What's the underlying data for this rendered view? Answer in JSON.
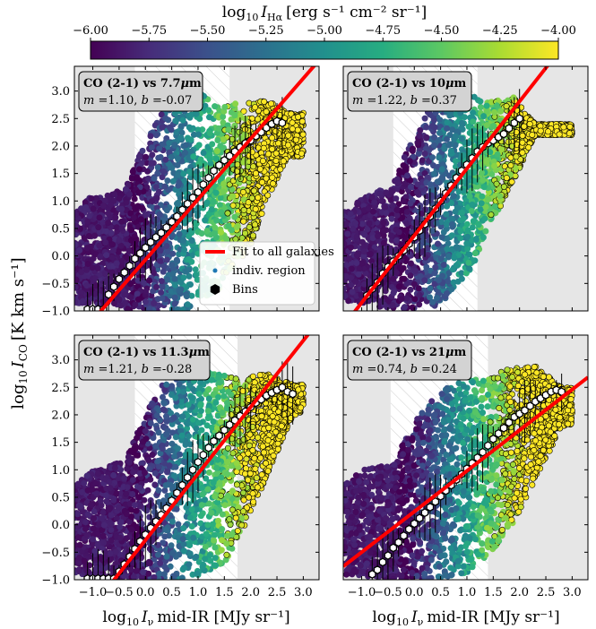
{
  "colorbar": {
    "label": "log₁₀ Iₕα [erg s⁻¹ cm⁻² sr⁻¹]",
    "label_parts": {
      "prefix": "log",
      "sub": "10",
      "var": "I",
      "var_sub": "Hα",
      "units": "[erg s⁻¹ cm⁻² sr⁻¹]"
    },
    "range": [
      -6.0,
      -4.0
    ],
    "ticks": [
      "−6.00",
      "−5.75",
      "−5.50",
      "−5.25",
      "−5.00",
      "−4.75",
      "−4.50",
      "−4.25",
      "−4.00"
    ],
    "tick_values": [
      -6.0,
      -5.75,
      -5.5,
      -5.25,
      -5.0,
      -4.75,
      -4.5,
      -4.25,
      -4.0
    ],
    "colormap": [
      "#440154",
      "#472c7a",
      "#3b518b",
      "#2c718e",
      "#21908d",
      "#27ad81",
      "#5cc863",
      "#aadc32",
      "#fde725"
    ]
  },
  "axes": {
    "ylabel": {
      "prefix": "log",
      "sub": "10",
      "var": "I",
      "var_sub": "CO",
      "units": "[K km s⁻¹]"
    },
    "xlabel": {
      "prefix": "log",
      "sub": "10",
      "var": "I",
      "var_sub": "ν",
      "units": "mid-IR [MJy sr⁻¹]"
    },
    "xlim": [
      -1.35,
      3.3
    ],
    "ylim": [
      -1.0,
      3.45
    ],
    "xticks": [
      -1.0,
      -0.5,
      0.0,
      0.5,
      1.0,
      1.5,
      2.0,
      2.5,
      3.0
    ],
    "xtick_labels": [
      "−1.0",
      "−0.5",
      "0.0",
      "0.5",
      "1.0",
      "1.5",
      "2.0",
      "2.5",
      "3.0"
    ],
    "yticks": [
      -1.0,
      -0.5,
      0.0,
      0.5,
      1.0,
      1.5,
      2.0,
      2.5,
      3.0
    ],
    "ytick_labels": [
      "−1.0",
      "−0.5",
      "0.0",
      "0.5",
      "1.0",
      "1.5",
      "2.0",
      "2.5",
      "3.0"
    ]
  },
  "legend": {
    "items": [
      {
        "label": "Fit to all galaxies",
        "kind": "line",
        "color": "#ff0000"
      },
      {
        "label": "indiv. region",
        "kind": "dot",
        "color": "#1f77b4"
      },
      {
        "label": "Bins",
        "kind": "hexagon",
        "color": "#000000"
      }
    ]
  },
  "chart_data": [
    {
      "type": "scatter",
      "title": "CO (2-1) vs 7.7μm",
      "title_parts": {
        "lead": "CO (2-1) vs 7.7",
        "mu": "μ",
        "tail": "m"
      },
      "fit_text": {
        "m_label": "m",
        "m": "=1.10",
        "b_label": "b",
        "b": "=-0.07"
      },
      "fit": {
        "slope": 1.1,
        "intercept": -0.07,
        "color": "#ff0000"
      },
      "shaded_x_low": -0.2,
      "shaded_x_high": 1.6,
      "bins": {
        "x": [
          -1.1,
          -1.0,
          -0.9,
          -0.8,
          -0.7,
          -0.6,
          -0.5,
          -0.4,
          -0.3,
          -0.2,
          -0.1,
          0.0,
          0.1,
          0.2,
          0.3,
          0.4,
          0.5,
          0.6,
          0.7,
          0.8,
          0.9,
          1.0,
          1.1,
          1.2,
          1.3,
          1.4,
          1.5,
          1.6,
          1.7,
          1.8,
          1.9,
          2.0,
          2.1,
          2.2,
          2.3,
          2.4,
          2.5,
          2.6
        ],
        "y": [
          -0.97,
          -0.97,
          -0.97,
          -0.97,
          -0.7,
          -0.56,
          -0.42,
          -0.3,
          -0.18,
          -0.05,
          0.05,
          0.15,
          0.25,
          0.34,
          0.42,
          0.52,
          0.62,
          0.72,
          0.84,
          0.95,
          1.06,
          1.16,
          1.3,
          1.42,
          1.55,
          1.65,
          1.74,
          1.82,
          1.9,
          1.98,
          2.05,
          2.1,
          2.18,
          2.25,
          2.33,
          2.4,
          2.45,
          2.42
        ]
      },
      "cloud": {
        "low_x": -1.35,
        "low_y": [
          -0.8,
          1.1
        ],
        "upper_y_at_x": [
          [
            -1.35,
            0.75
          ],
          [
            -1.1,
            1.05
          ],
          [
            -0.4,
            1.2
          ],
          [
            -0.1,
            1.9
          ],
          [
            0.3,
            2.6
          ],
          [
            0.8,
            3.0
          ],
          [
            1.3,
            2.9
          ],
          [
            1.8,
            2.75
          ],
          [
            2.3,
            2.85
          ],
          [
            2.7,
            2.6
          ]
        ],
        "lower_y_at_x": [
          [
            -1.35,
            -0.85
          ],
          [
            -0.2,
            -1.0
          ],
          [
            0.8,
            -1.0
          ],
          [
            1.4,
            -0.6
          ],
          [
            2.0,
            0.2
          ],
          [
            2.3,
            1.0
          ],
          [
            2.7,
            1.8
          ]
        ]
      }
    },
    {
      "type": "scatter",
      "title": "CO (2-1) vs 10μm",
      "title_parts": {
        "lead": "CO (2-1) vs 10",
        "mu": "μ",
        "tail": "m"
      },
      "fit_text": {
        "m_label": "m",
        "m": "=1.22",
        "b_label": "b",
        "b": "=0.37"
      },
      "fit": {
        "slope": 1.22,
        "intercept": 0.37,
        "color": "#ff0000"
      },
      "shaded_x_low": -0.4,
      "shaded_x_high": 1.2,
      "bins": {
        "x": [
          -0.9,
          -0.8,
          -0.7,
          -0.6,
          -0.5,
          -0.4,
          -0.3,
          -0.2,
          -0.1,
          0.0,
          0.1,
          0.2,
          0.3,
          0.4,
          0.5,
          0.6,
          0.7,
          0.8,
          0.9,
          1.0,
          1.1,
          1.2,
          1.3,
          1.4,
          1.5,
          1.6,
          1.7,
          1.8,
          1.9,
          2.0
        ],
        "y": [
          -0.72,
          -0.6,
          -0.48,
          -0.32,
          -0.2,
          -0.1,
          0.0,
          0.1,
          0.22,
          0.34,
          0.46,
          0.58,
          0.72,
          0.86,
          1.0,
          1.14,
          1.28,
          1.42,
          1.55,
          1.66,
          1.78,
          1.9,
          1.98,
          2.05,
          2.1,
          2.16,
          2.22,
          2.32,
          2.42,
          2.5
        ]
      },
      "cloud": {
        "low_x": -1.35,
        "low_y": [
          -0.8,
          1.1
        ],
        "upper_y_at_x": [
          [
            -1.35,
            0.8
          ],
          [
            -0.9,
            1.1
          ],
          [
            -0.4,
            1.3
          ],
          [
            -0.1,
            2.0
          ],
          [
            0.3,
            2.7
          ],
          [
            0.9,
            3.0
          ],
          [
            1.4,
            2.8
          ],
          [
            1.9,
            2.9
          ],
          [
            2.3,
            2.4
          ]
        ],
        "lower_y_at_x": [
          [
            -1.35,
            -0.8
          ],
          [
            -0.3,
            -1.0
          ],
          [
            0.5,
            -0.9
          ],
          [
            1.1,
            -0.2
          ],
          [
            1.6,
            0.8
          ],
          [
            2.0,
            1.6
          ],
          [
            2.3,
            2.2
          ]
        ]
      }
    },
    {
      "type": "scatter",
      "title": "CO (2-1) vs 11.3μm",
      "title_parts": {
        "lead": "CO (2-1) vs 11.3",
        "mu": "μ",
        "tail": "m"
      },
      "fit_text": {
        "m_label": "m",
        "m": "=1.21",
        "b_label": "b",
        "b": "=-0.28"
      },
      "fit": {
        "slope": 1.21,
        "intercept": -0.28,
        "color": "#ff0000"
      },
      "shaded_x_low": -0.2,
      "shaded_x_high": 1.75,
      "bins": {
        "x": [
          -1.1,
          -1.0,
          -0.9,
          -0.8,
          -0.7,
          -0.6,
          -0.5,
          -0.4,
          -0.3,
          -0.2,
          -0.1,
          0.0,
          0.1,
          0.2,
          0.3,
          0.4,
          0.5,
          0.6,
          0.7,
          0.8,
          0.9,
          1.0,
          1.1,
          1.2,
          1.3,
          1.4,
          1.5,
          1.6,
          1.7,
          1.8,
          1.9,
          2.0,
          2.1,
          2.2,
          2.3,
          2.4,
          2.5,
          2.6,
          2.7,
          2.8
        ],
        "y": [
          -0.98,
          -0.98,
          -0.98,
          -0.98,
          -0.98,
          -0.98,
          -0.85,
          -0.72,
          -0.58,
          -0.44,
          -0.3,
          -0.18,
          -0.06,
          0.06,
          0.18,
          0.3,
          0.44,
          0.58,
          0.72,
          0.86,
          1.0,
          1.14,
          1.27,
          1.4,
          1.52,
          1.62,
          1.72,
          1.82,
          1.9,
          1.98,
          2.06,
          2.14,
          2.22,
          2.28,
          2.35,
          2.4,
          2.45,
          2.5,
          2.42,
          2.38
        ]
      },
      "cloud": {
        "low_x": -1.35,
        "low_y": [
          -0.8,
          1.0
        ],
        "upper_y_at_x": [
          [
            -1.35,
            0.7
          ],
          [
            -1.0,
            1.0
          ],
          [
            -0.4,
            1.15
          ],
          [
            -0.1,
            1.8
          ],
          [
            0.3,
            2.55
          ],
          [
            0.8,
            2.9
          ],
          [
            1.3,
            2.75
          ],
          [
            1.8,
            2.65
          ],
          [
            2.3,
            2.75
          ],
          [
            2.8,
            2.55
          ]
        ],
        "lower_y_at_x": [
          [
            -1.35,
            -0.9
          ],
          [
            -0.2,
            -1.0
          ],
          [
            0.9,
            -1.0
          ],
          [
            1.5,
            -0.7
          ],
          [
            2.0,
            0.2
          ],
          [
            2.4,
            1.1
          ],
          [
            2.8,
            2.0
          ]
        ]
      }
    },
    {
      "type": "scatter",
      "title": "CO (2-1) vs 21μm",
      "title_parts": {
        "lead": "CO (2-1) vs 21",
        "mu": "μ",
        "tail": "m"
      },
      "fit_text": {
        "m_label": "m",
        "m": "=0.74",
        "b_label": "b",
        "b": "=0.24"
      },
      "fit": {
        "slope": 0.74,
        "intercept": 0.24,
        "color": "#ff0000"
      },
      "shaded_x_low": -0.45,
      "shaded_x_high": 1.4,
      "bins": {
        "x": [
          -0.8,
          -0.7,
          -0.6,
          -0.5,
          -0.4,
          -0.3,
          -0.2,
          -0.1,
          0.0,
          0.1,
          0.2,
          0.3,
          0.4,
          0.5,
          0.6,
          0.7,
          0.8,
          0.9,
          1.0,
          1.1,
          1.2,
          1.3,
          1.4,
          1.5,
          1.6,
          1.7,
          1.8,
          1.9,
          2.0,
          2.1,
          2.2,
          2.3,
          2.4,
          2.5,
          2.6,
          2.7,
          2.8
        ],
        "y": [
          -0.9,
          -0.82,
          -0.68,
          -0.56,
          -0.42,
          -0.32,
          -0.2,
          -0.08,
          0.02,
          0.12,
          0.22,
          0.32,
          0.42,
          0.52,
          0.62,
          0.72,
          0.82,
          0.92,
          1.02,
          1.12,
          1.22,
          1.32,
          1.44,
          1.56,
          1.66,
          1.76,
          1.86,
          1.96,
          2.02,
          2.08,
          2.16,
          2.24,
          2.3,
          2.36,
          2.42,
          2.45,
          2.42
        ]
      },
      "cloud": {
        "low_x": -1.35,
        "low_y": [
          -0.8,
          1.0
        ],
        "upper_y_at_x": [
          [
            -1.35,
            0.7
          ],
          [
            -1.0,
            1.0
          ],
          [
            -0.4,
            1.1
          ],
          [
            -0.1,
            1.7
          ],
          [
            0.3,
            2.3
          ],
          [
            0.8,
            2.6
          ],
          [
            1.3,
            2.65
          ],
          [
            1.8,
            2.85
          ],
          [
            2.3,
            2.9
          ],
          [
            2.8,
            2.5
          ]
        ],
        "lower_y_at_x": [
          [
            -1.35,
            -0.9
          ],
          [
            -0.3,
            -1.0
          ],
          [
            0.6,
            -1.0
          ],
          [
            1.2,
            -0.8
          ],
          [
            1.8,
            -0.1
          ],
          [
            2.3,
            0.8
          ],
          [
            2.8,
            1.8
          ]
        ]
      }
    }
  ]
}
